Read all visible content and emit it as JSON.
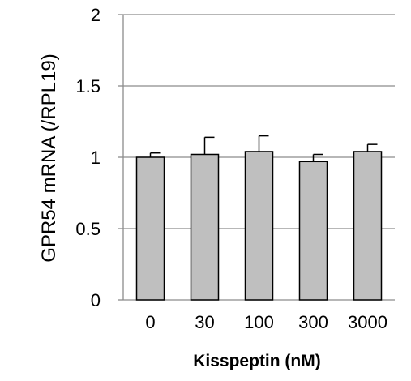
{
  "chart_data": {
    "type": "bar",
    "categories": [
      "0",
      "30",
      "100",
      "300",
      "3000"
    ],
    "values": [
      1.0,
      1.02,
      1.04,
      0.97,
      1.04
    ],
    "errors": [
      0.03,
      0.12,
      0.11,
      0.05,
      0.05
    ],
    "ylabel": "GPR54 mRNA (/RPL19)",
    "xlabel": "Kisspeptin (nM)",
    "ylim": [
      0,
      2
    ],
    "yticks": [
      "0",
      "0.5",
      "1",
      "1.5",
      "2"
    ],
    "grid": true,
    "legend": "none",
    "colors": {
      "bar": "#bfbfbf",
      "bar_edge": "#000000",
      "grid": "#8c8c8c",
      "axis": "#8c8c8c"
    }
  }
}
